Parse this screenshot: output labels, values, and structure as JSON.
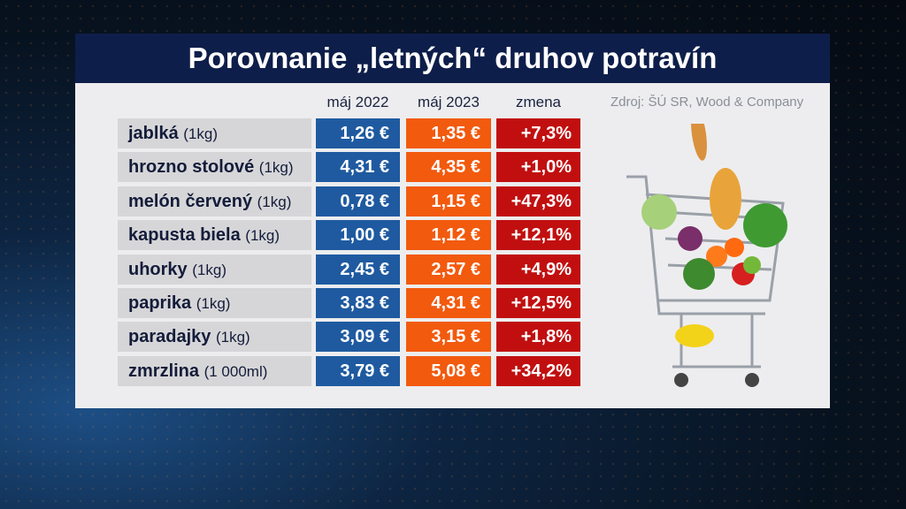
{
  "title": "Porovnanie „letných“ druhov potravín",
  "source": "Zdroj: ŠÚ SR, Wood & Company",
  "chart_data": {
    "type": "table",
    "title": "Porovnanie „letných“ druhov potravín",
    "columns": [
      "máj 2022",
      "máj 2023",
      "zmena"
    ],
    "rows": [
      {
        "name": "jablká",
        "unit": "(1kg)",
        "may2022": "1,26 €",
        "may2023": "1,35 €",
        "change": "+7,3%"
      },
      {
        "name": "hrozno stolové",
        "unit": "(1kg)",
        "may2022": "4,31 €",
        "may2023": "4,35 €",
        "change": "+1,0%"
      },
      {
        "name": "melón červený",
        "unit": "(1kg)",
        "may2022": "0,78 €",
        "may2023": "1,15 €",
        "change": "+47,3%"
      },
      {
        "name": "kapusta biela",
        "unit": "(1kg)",
        "may2022": "1,00 €",
        "may2023": "1,12 €",
        "change": "+12,1%"
      },
      {
        "name": "uhorky",
        "unit": "(1kg)",
        "may2022": "2,45 €",
        "may2023": "2,57 €",
        "change": "+4,9%"
      },
      {
        "name": "paprika",
        "unit": "(1kg)",
        "may2022": "3,83 €",
        "may2023": "4,31 €",
        "change": "+12,5%"
      },
      {
        "name": "paradajky",
        "unit": "(1kg)",
        "may2022": "3,09 €",
        "may2023": "3,15 €",
        "change": "+1,8%"
      },
      {
        "name": "zmrzlina",
        "unit": "(1 000ml)",
        "may2022": "3,79 €",
        "may2023": "5,08 €",
        "change": "+34,2%"
      }
    ]
  },
  "colors": {
    "title_bg": "#0e1e4a",
    "may2022": "#1f5aa0",
    "may2023": "#f25a0e",
    "change": "#c10f10"
  }
}
